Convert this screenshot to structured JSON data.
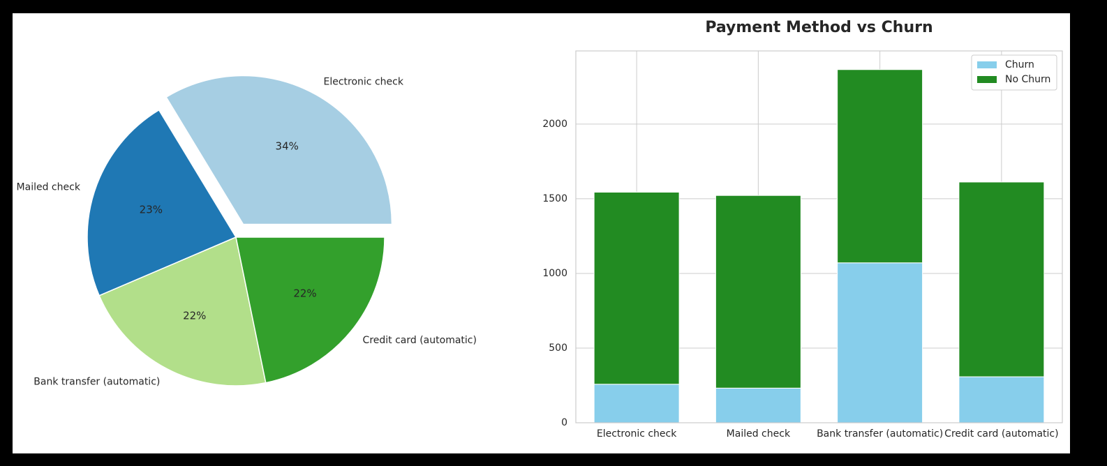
{
  "chart_data": [
    {
      "type": "pie",
      "title": "",
      "labels": [
        "Electronic check",
        "Mailed check",
        "Bank transfer (automatic)",
        "Credit card (automatic)"
      ],
      "values": [
        34,
        23,
        22,
        22
      ],
      "percent_labels": [
        "34%",
        "23%",
        "22%",
        "22%"
      ],
      "colors": [
        "#a6cee3",
        "#1f78b4",
        "#b2df8a",
        "#33a02c"
      ],
      "explode": [
        0.1,
        0,
        0,
        0
      ]
    },
    {
      "type": "bar",
      "stacked": true,
      "title": "Payment Method vs Churn",
      "xlabel": "",
      "ylabel": "",
      "categories": [
        "Electronic check",
        "Mailed check",
        "Bank transfer (automatic)",
        "Credit card (automatic)"
      ],
      "series": [
        {
          "name": "Churn",
          "color": "#87ceeb",
          "values": [
            258,
            232,
            1071,
            308
          ]
        },
        {
          "name": "No Churn",
          "color": "#228b22",
          "values": [
            1286,
            1290,
            1294,
            1304
          ]
        }
      ],
      "ylim": [
        0,
        2490
      ],
      "yticks": [
        0,
        500,
        1000,
        1500,
        2000
      ],
      "ytick_labels": [
        "0",
        "500",
        "1000",
        "1500",
        "2000"
      ],
      "grid": true,
      "legend": "top-right"
    }
  ]
}
